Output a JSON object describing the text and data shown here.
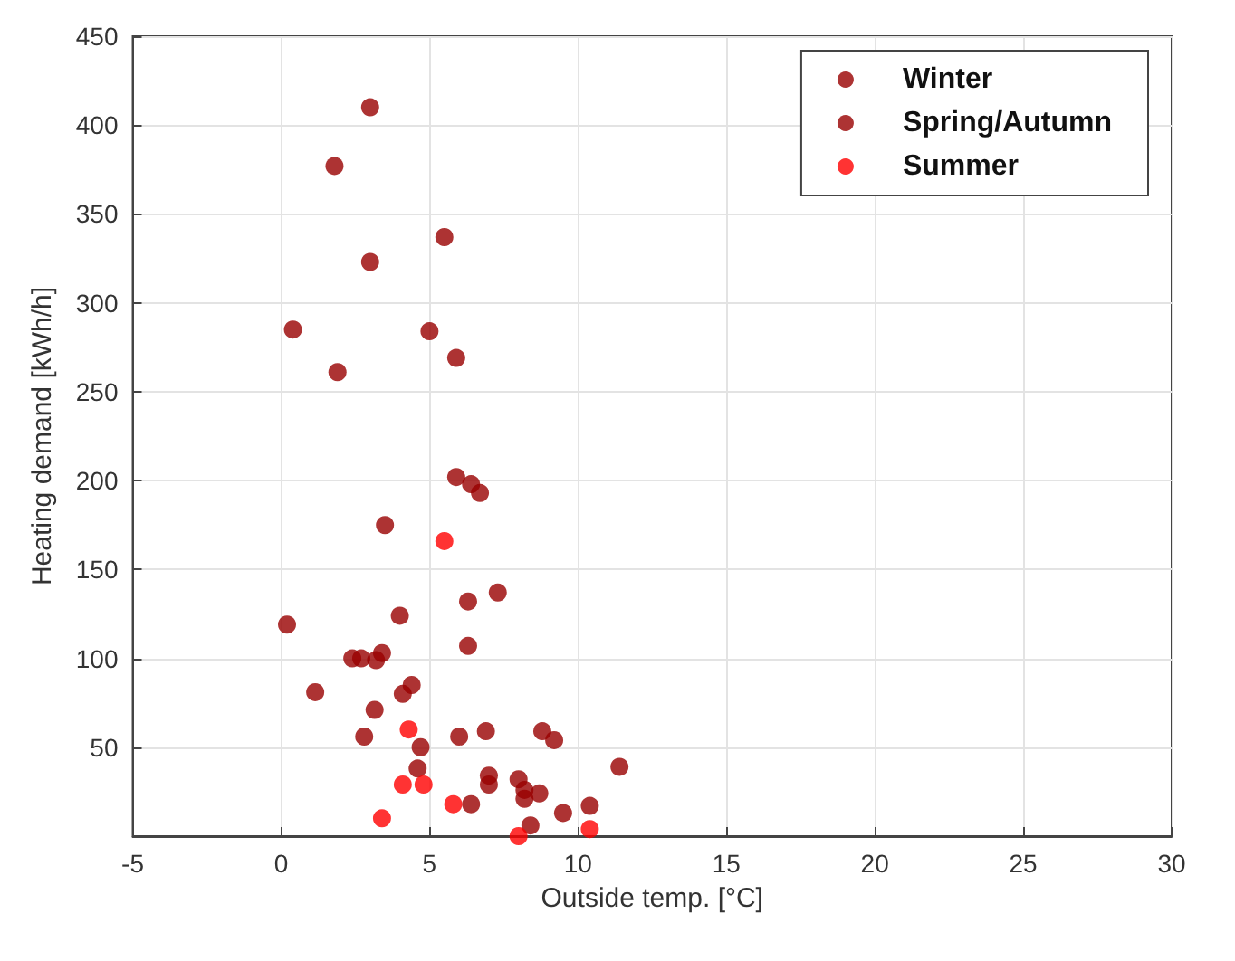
{
  "chart_data": {
    "type": "scatter",
    "xlabel": "Outside temp. [°C]",
    "ylabel": "Heating demand [kWh/h]",
    "xlim": [
      -5,
      30
    ],
    "xticks": [
      -5,
      0,
      5,
      10,
      15,
      20,
      25,
      30
    ],
    "ylim": [
      0,
      450
    ],
    "yticks": [
      {
        "value": 0,
        "label": null
      },
      50,
      100,
      150,
      200,
      250,
      300,
      350,
      400,
      450
    ],
    "grid": true,
    "legend": "top right",
    "marker": "circle",
    "series": [
      {
        "name": "Winter",
        "color": "#990000",
        "x": [
          3.0,
          1.8,
          5.5,
          3.0,
          0.4,
          5.0,
          5.9,
          1.9,
          5.9,
          6.4,
          6.7,
          3.5,
          7.3,
          6.3,
          4.0,
          0.2
        ],
        "values": [
          410,
          377,
          337,
          323,
          285,
          284,
          269,
          261,
          202,
          198,
          193,
          175,
          137,
          132,
          124,
          119
        ]
      },
      {
        "name": "Spring/Autumn",
        "color": "#990000",
        "x": [
          6.3,
          2.4,
          2.7,
          3.2,
          3.4,
          1.15,
          4.1,
          4.4,
          3.15,
          2.8,
          4.7,
          6.0,
          6.9,
          8.8,
          9.2,
          11.4,
          4.6,
          7.0,
          7.0,
          8.0,
          8.2,
          8.2,
          8.7,
          6.4,
          9.5,
          10.4,
          8.4
        ],
        "values": [
          107,
          100,
          100,
          99,
          103,
          81,
          80,
          85,
          71,
          56,
          50,
          56,
          59,
          59,
          54,
          39,
          38,
          34,
          29,
          32,
          26,
          21,
          24,
          18,
          13,
          17,
          6
        ]
      },
      {
        "name": "Summer",
        "color": "#ff0000",
        "x": [
          5.5,
          4.3,
          4.1,
          4.8,
          3.4,
          5.8,
          10.4,
          8.0
        ],
        "values": [
          166,
          60,
          29,
          29,
          10,
          18,
          4,
          0
        ]
      }
    ]
  }
}
